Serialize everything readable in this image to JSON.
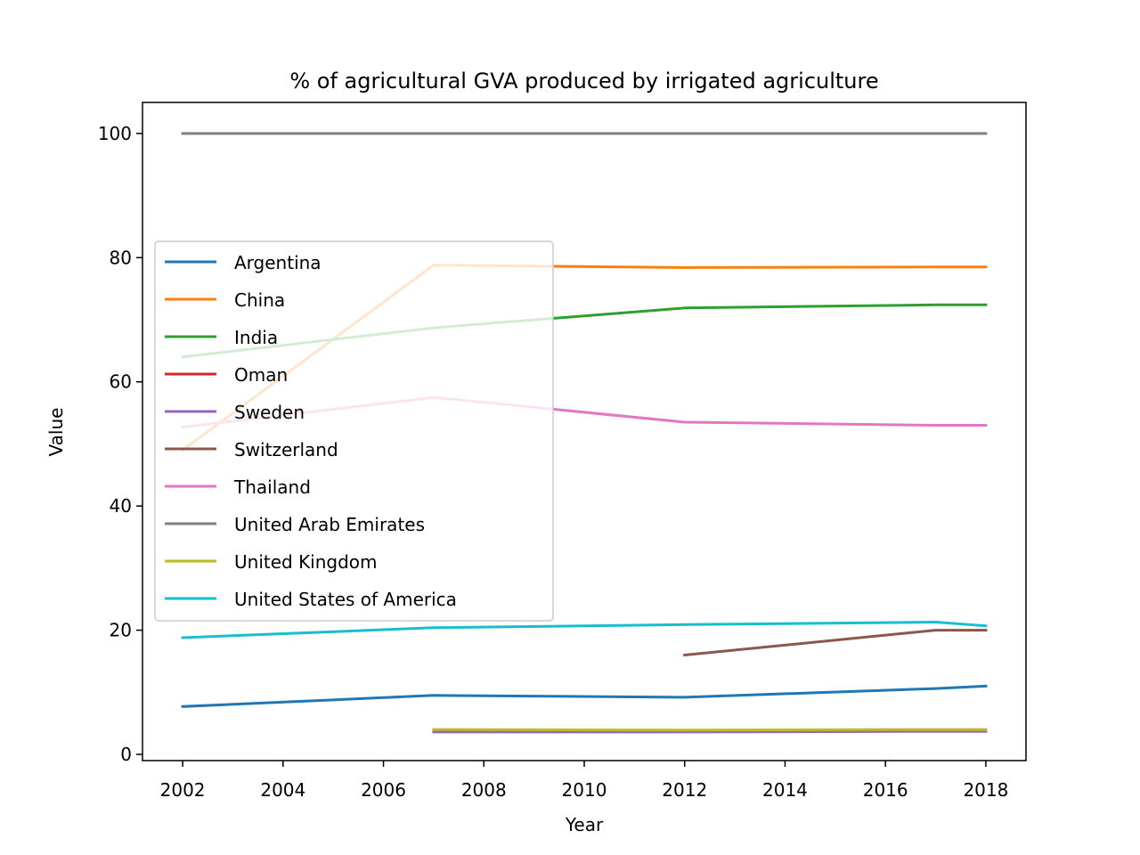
{
  "chart_data": {
    "type": "line",
    "title": "% of agricultural GVA produced by irrigated agriculture",
    "xlabel": "Year",
    "ylabel": "Value",
    "xlim": [
      2001.2,
      2018.8
    ],
    "ylim": [
      -1,
      105
    ],
    "xticks": [
      2002,
      2004,
      2006,
      2008,
      2010,
      2012,
      2014,
      2016,
      2018
    ],
    "yticks": [
      0,
      20,
      40,
      60,
      80,
      100
    ],
    "grid": false,
    "legend_position": "center-left",
    "series": [
      {
        "name": "Argentina",
        "color": "#1f77b4",
        "points": [
          [
            2002,
            7.7
          ],
          [
            2007,
            9.5
          ],
          [
            2012,
            9.2
          ],
          [
            2017,
            10.6
          ],
          [
            2018,
            11.0
          ]
        ]
      },
      {
        "name": "China",
        "color": "#ff7f0e",
        "points": [
          [
            2002,
            49.0
          ],
          [
            2007,
            78.8
          ],
          [
            2012,
            78.4
          ],
          [
            2017,
            78.5
          ],
          [
            2018,
            78.5
          ]
        ]
      },
      {
        "name": "India",
        "color": "#2ca02c",
        "points": [
          [
            2002,
            64.0
          ],
          [
            2007,
            68.7
          ],
          [
            2012,
            71.9
          ],
          [
            2017,
            72.4
          ],
          [
            2018,
            72.4
          ]
        ]
      },
      {
        "name": "Oman",
        "color": "#d62728",
        "points": []
      },
      {
        "name": "Sweden",
        "color": "#9467bd",
        "points": [
          [
            2007,
            3.6
          ],
          [
            2012,
            3.6
          ],
          [
            2017,
            3.7
          ],
          [
            2018,
            3.7
          ]
        ]
      },
      {
        "name": "Switzerland",
        "color": "#8c564b",
        "points": [
          [
            2012,
            16.0
          ],
          [
            2017,
            20.0
          ],
          [
            2018,
            20.0
          ]
        ]
      },
      {
        "name": "Thailand",
        "color": "#e377c2",
        "points": [
          [
            2002,
            52.7
          ],
          [
            2007,
            57.5
          ],
          [
            2012,
            53.5
          ],
          [
            2017,
            53.0
          ],
          [
            2018,
            53.0
          ]
        ]
      },
      {
        "name": "United Arab Emirates",
        "color": "#7f7f7f",
        "points": [
          [
            2002,
            100.0
          ],
          [
            2007,
            100.0
          ],
          [
            2012,
            100.0
          ],
          [
            2017,
            100.0
          ],
          [
            2018,
            100.0
          ]
        ]
      },
      {
        "name": "United Kingdom",
        "color": "#bcbd22",
        "points": [
          [
            2007,
            4.0
          ],
          [
            2012,
            3.9
          ],
          [
            2017,
            4.0
          ],
          [
            2018,
            4.0
          ]
        ]
      },
      {
        "name": "United States of America",
        "color": "#17becf",
        "points": [
          [
            2002,
            18.8
          ],
          [
            2007,
            20.4
          ],
          [
            2012,
            20.9
          ],
          [
            2017,
            21.3
          ],
          [
            2018,
            20.7
          ]
        ]
      }
    ]
  }
}
